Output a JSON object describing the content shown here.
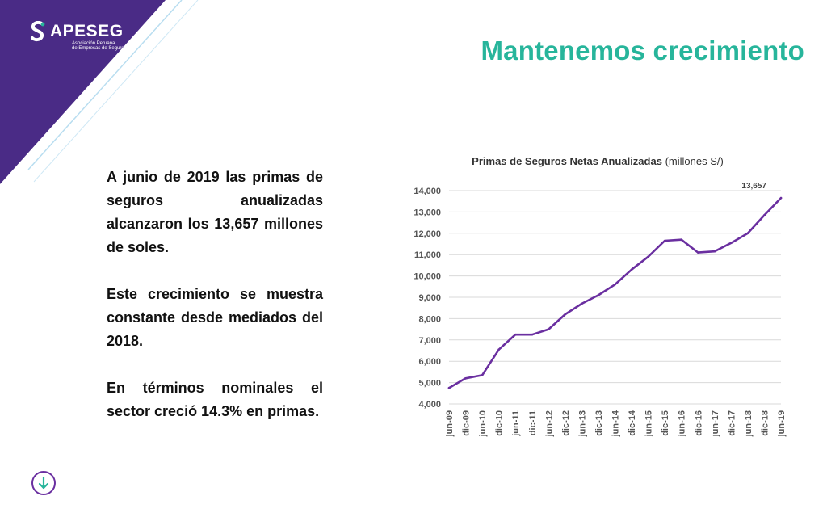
{
  "brand": {
    "name": "APESEG",
    "subtitle_line1": "Asociación Peruana",
    "subtitle_line2": "de Empresas de Seguros",
    "colors": {
      "purple": "#4a2b86",
      "teal": "#27b59b",
      "line": "#6a2fa0"
    }
  },
  "slide": {
    "title": "Mantenemos crecimiento",
    "paragraphs": [
      "A junio de 2019 las primas de seguros anualizadas alcanzaron los 13,657 millones de soles.",
      "Este crecimiento se muestra constante desde mediados del 2018.",
      "En términos nominales el sector creció 14.3% en primas."
    ]
  },
  "icons": {
    "logo": "apeseg-logo-icon",
    "scroll": "arrow-down-circle-icon"
  },
  "chart_data": {
    "type": "line",
    "title": "Primas de Seguros Netas Anualizadas",
    "title_unit": "(millones S/)",
    "categories": [
      "jun-09",
      "dic-09",
      "jun-10",
      "dic-10",
      "jun-11",
      "dic-11",
      "jun-12",
      "dic-12",
      "jun-13",
      "dic-13",
      "jun-14",
      "dic-14",
      "jun-15",
      "dic-15",
      "jun-16",
      "dic-16",
      "jun-17",
      "dic-17",
      "jun-18",
      "dic-18",
      "jun-19"
    ],
    "series": [
      {
        "values": [
          4750,
          5200,
          5350,
          6550,
          7250,
          7250,
          7500,
          8200,
          8700,
          9100,
          9600,
          10300,
          10900,
          11650,
          11700,
          11100,
          11150,
          11550,
          12000,
          12850,
          13657
        ]
      }
    ],
    "ylim": [
      4000,
      14000
    ],
    "yticks": [
      "4,000",
      "5,000",
      "6,000",
      "7,000",
      "8,000",
      "9,000",
      "10,000",
      "11,000",
      "12,000",
      "13,000",
      "14,000"
    ],
    "annotation": "13,657",
    "grid": true,
    "legend": "none"
  }
}
